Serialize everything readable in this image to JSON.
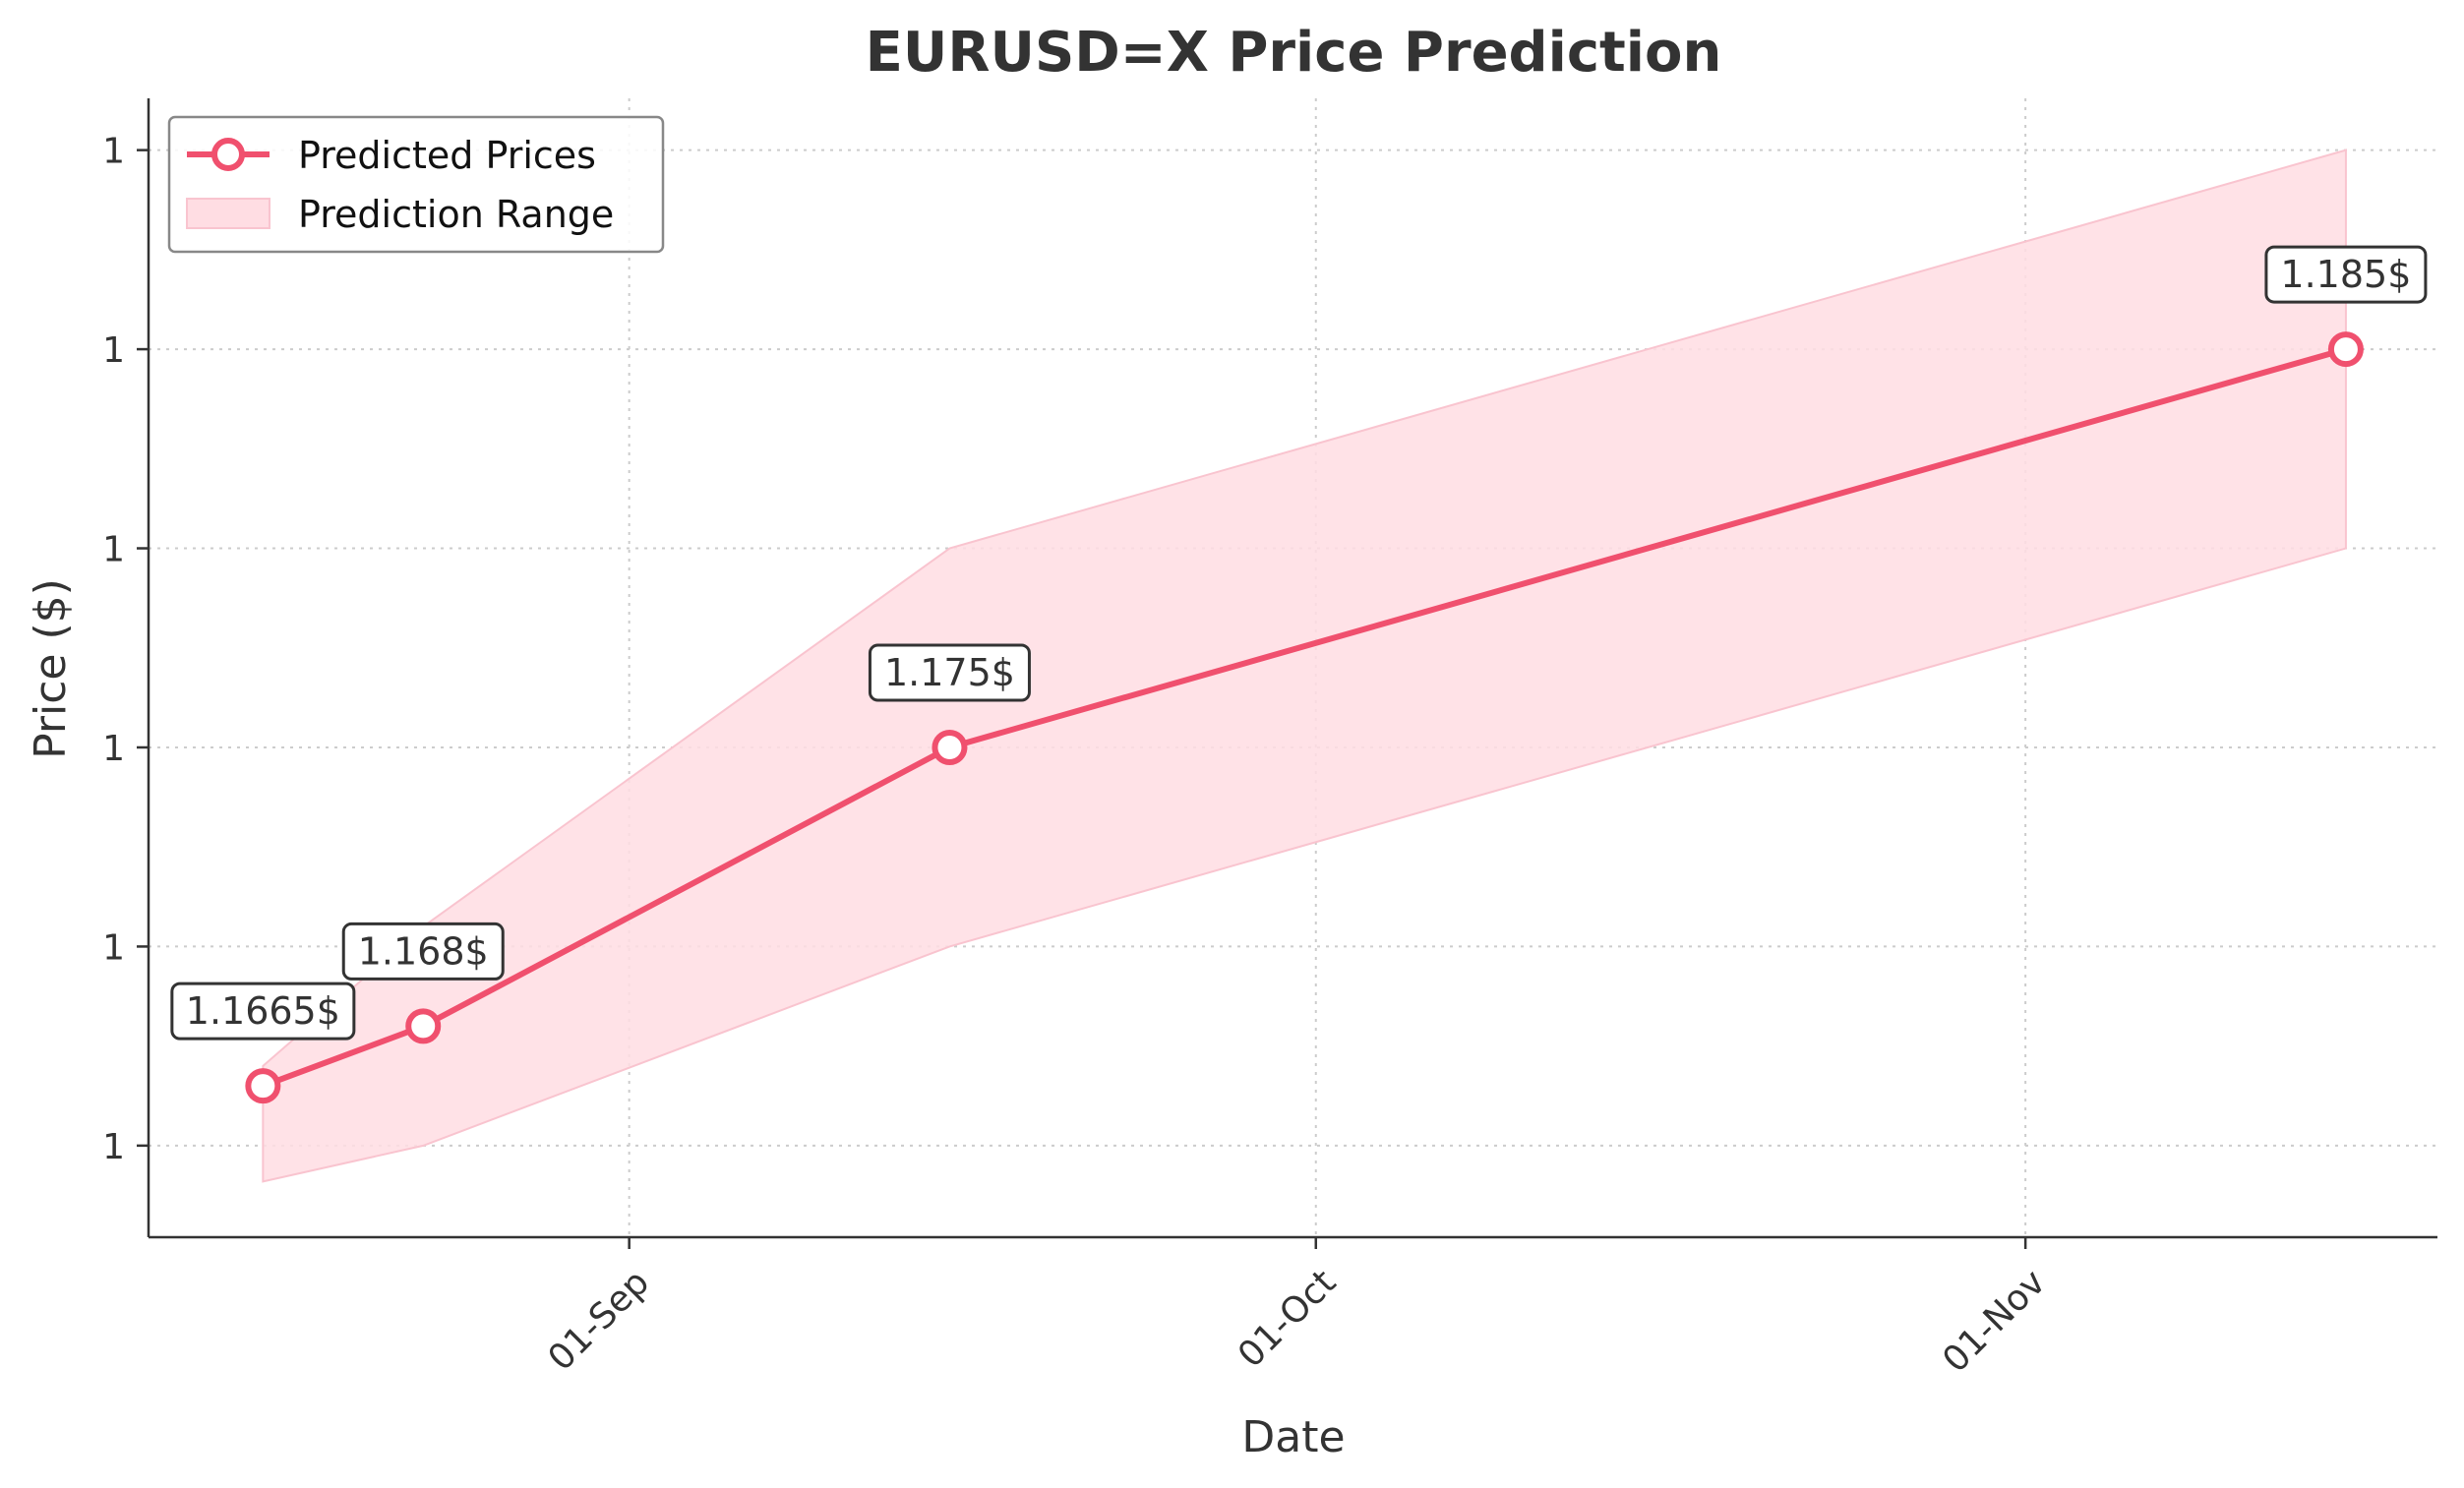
{
  "chart_data": {
    "type": "line",
    "title": "EURUSD=X Price Prediction",
    "xlabel": "Date",
    "ylabel": "Price ($)",
    "x_ticks": [
      {
        "date": "2025-09-01",
        "label": "01-Sep"
      },
      {
        "date": "2025-10-01",
        "label": "01-Oct"
      },
      {
        "date": "2025-11-01",
        "label": "01-Nov"
      }
    ],
    "xlim": [
      "2025-08-11",
      "2025-11-19"
    ],
    "y_ticks": [
      1.165,
      1.17,
      1.175,
      1.18,
      1.185,
      1.19
    ],
    "y_tick_labels": [
      "1",
      "1",
      "1",
      "1",
      "1",
      "1"
    ],
    "ylim": [
      1.1627,
      1.1913
    ],
    "grid": true,
    "legend_position": "upper left",
    "series": [
      {
        "name": "Predicted Prices",
        "color": "#f0506e",
        "points": [
          {
            "x": "2025-08-16",
            "y": 1.1665,
            "label": "1.1665$"
          },
          {
            "x": "2025-08-23",
            "y": 1.168,
            "label": "1.168$"
          },
          {
            "x": "2025-09-15",
            "y": 1.175,
            "label": "1.175$"
          },
          {
            "x": "2025-11-15",
            "y": 1.185,
            "label": "1.185$"
          }
        ]
      },
      {
        "name": "Prediction Range",
        "type": "area",
        "color": "#ffdde3",
        "x": [
          "2025-08-16",
          "2025-08-23",
          "2025-09-15",
          "2025-11-15"
        ],
        "lower": [
          1.1641,
          1.165,
          1.17,
          1.18
        ],
        "upper": [
          1.167,
          1.1705,
          1.18,
          1.19
        ]
      }
    ]
  }
}
